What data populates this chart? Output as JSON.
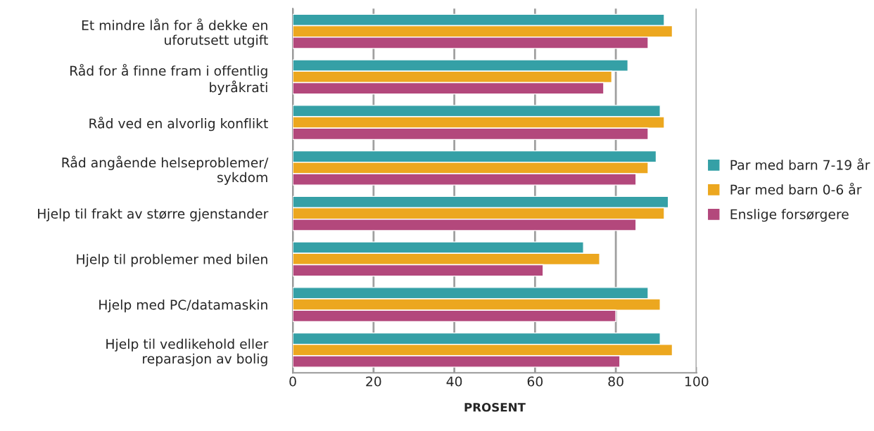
{
  "chart_data": {
    "type": "bar",
    "orientation": "horizontal",
    "xlabel": "PROSENT",
    "categories": [
      "Et mindre lån for å dekke en\nuforutsett utgift",
      "Råd for å finne fram i offentlig\nbyråkrati",
      "Råd ved en alvorlig konflikt",
      "Råd angående helseproblemer/\nsykdom",
      "Hjelp til frakt av større gjenstander",
      "Hjelp til problemer med bilen",
      "Hjelp med PC/datamaskin",
      "Hjelp til vedlikehold eller\nreparasjon av bolig"
    ],
    "series": [
      {
        "name": "Par med barn 7-19 år",
        "color": "#35a0a6",
        "values": [
          92,
          83,
          91,
          90,
          93,
          72,
          88,
          91
        ]
      },
      {
        "name": "Par med barn 0-6 år",
        "color": "#eca71f",
        "values": [
          94,
          79,
          92,
          88,
          92,
          76,
          91,
          94
        ]
      },
      {
        "name": "Enslige forsørgere",
        "color": "#b3487c",
        "values": [
          88,
          77,
          88,
          85,
          85,
          62,
          80,
          81
        ]
      }
    ],
    "xlim": [
      0,
      100
    ],
    "xticks": [
      0,
      20,
      40,
      60,
      80,
      100
    ],
    "grid": "x",
    "legend": "right"
  }
}
